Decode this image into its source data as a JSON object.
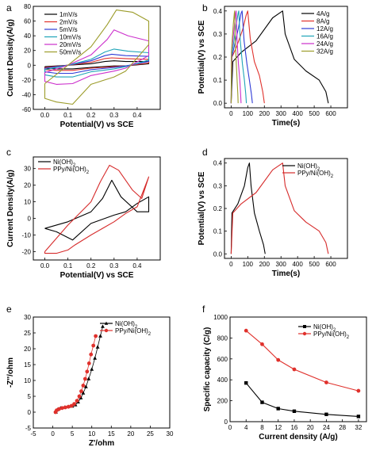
{
  "chart_data": [
    {
      "panel": "a",
      "type": "line",
      "xlabel": "Potential(V) vs SCE",
      "ylabel": "Current Density(A/g)",
      "xlim": [
        -0.05,
        0.5
      ],
      "ylim": [
        -60,
        80
      ],
      "xticks": [
        "0.0",
        "0.1",
        "0.2",
        "0.3",
        "0.4"
      ],
      "xtick_values": [
        0.0,
        0.1,
        0.2,
        0.3,
        0.4
      ],
      "yticks": [
        "-60",
        "-40",
        "-20",
        "0",
        "20",
        "40",
        "60",
        "80"
      ],
      "ytick_values": [
        -60,
        -40,
        -20,
        0,
        20,
        40,
        60,
        80
      ],
      "legend_position": "top-left",
      "series": [
        {
          "name": "1mV/s",
          "color": "#000000",
          "x": [
            0.0,
            0.1,
            0.2,
            0.26,
            0.3,
            0.35,
            0.45,
            0.45,
            0.35,
            0.3,
            0.2,
            0.12,
            0.05,
            0.0,
            0.0
          ],
          "y": [
            -2,
            0,
            2,
            5,
            6,
            5,
            5,
            2,
            -1,
            -1,
            -3,
            -5,
            -5,
            -4,
            -2
          ]
        },
        {
          "name": "2mV/s",
          "color": "#e0312c",
          "x": [
            0.0,
            0.1,
            0.2,
            0.26,
            0.29,
            0.35,
            0.45,
            0.45,
            0.35,
            0.3,
            0.2,
            0.12,
            0.05,
            0.0,
            0.0
          ],
          "y": [
            -3,
            0,
            4,
            9,
            10,
            9,
            8,
            3,
            -1,
            -2,
            -4,
            -7,
            -7,
            -6,
            -3
          ]
        },
        {
          "name": "5mV/s",
          "color": "#2f3bd6",
          "x": [
            0.0,
            0.1,
            0.2,
            0.26,
            0.29,
            0.35,
            0.45,
            0.45,
            0.35,
            0.3,
            0.2,
            0.12,
            0.05,
            0.0,
            0.0
          ],
          "y": [
            -4,
            0,
            6,
            13,
            15,
            13,
            12,
            5,
            -1,
            -3,
            -6,
            -11,
            -11,
            -9,
            -4
          ]
        },
        {
          "name": "10mV/s",
          "color": "#1ea4b8",
          "x": [
            0.0,
            0.1,
            0.2,
            0.26,
            0.3,
            0.36,
            0.45,
            0.45,
            0.35,
            0.3,
            0.2,
            0.12,
            0.05,
            0.0,
            0.0
          ],
          "y": [
            -6,
            0,
            8,
            18,
            22,
            19,
            17,
            7,
            -2,
            -5,
            -9,
            -16,
            -16,
            -13,
            -6
          ]
        },
        {
          "name": "20mV/s",
          "color": "#cc2fcc",
          "x": [
            0.0,
            0.1,
            0.2,
            0.27,
            0.3,
            0.36,
            0.45,
            0.45,
            0.35,
            0.3,
            0.2,
            0.12,
            0.05,
            0.0,
            0.0
          ],
          "y": [
            -10,
            0,
            14,
            35,
            48,
            40,
            33,
            13,
            -4,
            -8,
            -14,
            -25,
            -26,
            -22,
            -10
          ]
        },
        {
          "name": "50mV/s",
          "color": "#9c9c2a",
          "x": [
            0.0,
            0.1,
            0.2,
            0.27,
            0.31,
            0.38,
            0.45,
            0.45,
            0.35,
            0.3,
            0.2,
            0.12,
            0.05,
            0.0,
            0.0
          ],
          "y": [
            -25,
            0,
            25,
            55,
            75,
            72,
            60,
            28,
            -8,
            -16,
            -26,
            -53,
            -50,
            -45,
            -25
          ]
        }
      ]
    },
    {
      "panel": "b",
      "type": "line",
      "xlabel": "Time(s)",
      "ylabel": "Potential(V) vs SCE",
      "xlim": [
        -40,
        700
      ],
      "ylim": [
        -0.02,
        0.42
      ],
      "xticks": [
        "0",
        "100",
        "200",
        "300",
        "400",
        "500",
        "600"
      ],
      "xtick_values": [
        0,
        100,
        200,
        300,
        400,
        500,
        600
      ],
      "yticks": [
        "0.0",
        "0.1",
        "0.2",
        "0.3",
        "0.4"
      ],
      "ytick_values": [
        0.0,
        0.1,
        0.2,
        0.3,
        0.4
      ],
      "legend_position": "top-right",
      "series": [
        {
          "name": "4A/g",
          "color": "#000000",
          "x": [
            0,
            10,
            60,
            150,
            250,
            290,
            310,
            325,
            380,
            450,
            530,
            570,
            585
          ],
          "y": [
            0.0,
            0.18,
            0.22,
            0.27,
            0.37,
            0.39,
            0.4,
            0.3,
            0.19,
            0.14,
            0.1,
            0.05,
            0.0
          ]
        },
        {
          "name": "8A/g",
          "color": "#e0312c",
          "x": [
            0,
            5,
            30,
            70,
            90,
            100,
            115,
            140,
            170,
            190,
            200
          ],
          "y": [
            0.0,
            0.2,
            0.24,
            0.32,
            0.38,
            0.4,
            0.28,
            0.18,
            0.12,
            0.05,
            0.0
          ]
        },
        {
          "name": "12A/g",
          "color": "#2f3bd6",
          "x": [
            0,
            4,
            20,
            45,
            60,
            66,
            78,
            95,
            110,
            122,
            128
          ],
          "y": [
            0.0,
            0.2,
            0.25,
            0.33,
            0.39,
            0.4,
            0.27,
            0.17,
            0.1,
            0.04,
            0.0
          ]
        },
        {
          "name": "16A/g",
          "color": "#1ea4b8",
          "x": [
            0,
            3,
            15,
            30,
            42,
            46,
            55,
            68,
            80,
            88,
            92
          ],
          "y": [
            0.0,
            0.21,
            0.26,
            0.34,
            0.39,
            0.4,
            0.27,
            0.17,
            0.1,
            0.04,
            0.0
          ]
        },
        {
          "name": "24A/g",
          "color": "#cc2fcc",
          "x": [
            0,
            2,
            10,
            20,
            27,
            30,
            36,
            44,
            52,
            57,
            60
          ],
          "y": [
            0.0,
            0.22,
            0.27,
            0.34,
            0.39,
            0.4,
            0.27,
            0.17,
            0.1,
            0.04,
            0.0
          ]
        },
        {
          "name": "32A/g",
          "color": "#9c9c2a",
          "x": [
            0,
            2,
            7,
            14,
            19,
            21,
            25,
            31,
            36,
            40,
            42
          ],
          "y": [
            0.0,
            0.22,
            0.28,
            0.35,
            0.39,
            0.4,
            0.27,
            0.17,
            0.1,
            0.04,
            0.0
          ]
        }
      ]
    },
    {
      "panel": "c",
      "type": "line",
      "xlabel": "Potential(V) vs SCE",
      "ylabel": "Current Density(A/g)",
      "xlim": [
        -0.05,
        0.5
      ],
      "ylim": [
        -25,
        37
      ],
      "xticks": [
        "0.0",
        "0.1",
        "0.2",
        "0.3",
        "0.4"
      ],
      "xtick_values": [
        0.0,
        0.1,
        0.2,
        0.3,
        0.4
      ],
      "yticks": [
        "-20",
        "-10",
        "0",
        "10",
        "20",
        "30"
      ],
      "ytick_values": [
        -20,
        -10,
        0,
        10,
        20,
        30
      ],
      "legend_position": "top-left",
      "series": [
        {
          "name": "Ni(OH)2",
          "color": "#000000",
          "x": [
            0.0,
            0.1,
            0.2,
            0.25,
            0.29,
            0.33,
            0.4,
            0.45,
            0.45,
            0.4,
            0.35,
            0.3,
            0.2,
            0.12,
            0.05,
            0.0,
            0.0
          ],
          "y": [
            -6,
            -2,
            4,
            12,
            23,
            13,
            4,
            4,
            13,
            9,
            4,
            2,
            -3,
            -13,
            -8,
            -6,
            -6
          ]
        },
        {
          "name": "PPy/Ni(OH)2",
          "color": "#d62b2b",
          "x": [
            0.0,
            0.1,
            0.2,
            0.24,
            0.28,
            0.32,
            0.38,
            0.42,
            0.45,
            0.45,
            0.4,
            0.35,
            0.3,
            0.2,
            0.13,
            0.1,
            0.05,
            0.0,
            0.0
          ],
          "y": [
            -20,
            -4,
            10,
            22,
            32,
            29,
            17,
            12,
            25,
            25,
            7,
            3,
            -2,
            -10,
            -16,
            -19,
            -21,
            -21,
            -20
          ]
        }
      ]
    },
    {
      "panel": "d",
      "type": "line",
      "xlabel": "Time(s)",
      "ylabel": "Potential(V) vs SCE",
      "xlim": [
        -40,
        700
      ],
      "ylim": [
        -0.02,
        0.42
      ],
      "xticks": [
        "0",
        "100",
        "200",
        "300",
        "400",
        "500",
        "600"
      ],
      "xtick_values": [
        0,
        100,
        200,
        300,
        400,
        500,
        600
      ],
      "yticks": [
        "0.0",
        "0.1",
        "0.2",
        "0.3",
        "0.4"
      ],
      "ytick_values": [
        0.0,
        0.1,
        0.2,
        0.3,
        0.4
      ],
      "legend_position": "top-right",
      "series": [
        {
          "name": "Ni(OH)2",
          "color": "#000000",
          "x": [
            0,
            5,
            40,
            80,
            100,
            110,
            120,
            140,
            170,
            195,
            205
          ],
          "y": [
            0.0,
            0.18,
            0.22,
            0.3,
            0.38,
            0.4,
            0.3,
            0.18,
            0.1,
            0.04,
            0.0
          ]
        },
        {
          "name": "PPy/Ni(OH)2",
          "color": "#d62b2b",
          "x": [
            0,
            10,
            60,
            150,
            250,
            290,
            310,
            325,
            380,
            450,
            530,
            570,
            585
          ],
          "y": [
            0.0,
            0.18,
            0.22,
            0.27,
            0.37,
            0.39,
            0.4,
            0.3,
            0.19,
            0.14,
            0.1,
            0.05,
            0.0
          ]
        }
      ]
    },
    {
      "panel": "e",
      "type": "scatter",
      "xlabel": "Z'/ohm",
      "ylabel": "-Z''/ohm",
      "xlim": [
        -5,
        30
      ],
      "ylim": [
        -5,
        30
      ],
      "xticks": [
        "-5",
        "0",
        "5",
        "10",
        "15",
        "20",
        "25",
        "30"
      ],
      "xtick_values": [
        -5,
        0,
        5,
        10,
        15,
        20,
        25,
        30
      ],
      "yticks": [
        "-5",
        "0",
        "5",
        "10",
        "15",
        "20",
        "25",
        "30"
      ],
      "ytick_values": [
        -5,
        0,
        5,
        10,
        15,
        20,
        25,
        30
      ],
      "legend_position": "top-right",
      "series": [
        {
          "name": "Ni(OH)2",
          "color": "#000000",
          "marker": "triangle",
          "x": [
            0.8,
            1.2,
            2.0,
            3.0,
            4.0,
            5.0,
            5.8,
            6.5,
            7.2,
            7.8,
            8.5,
            9.2,
            10.0,
            10.8,
            11.5,
            12.2,
            12.8
          ],
          "y": [
            0.0,
            0.8,
            1.3,
            1.5,
            1.7,
            1.9,
            2.3,
            3.2,
            4.5,
            6.0,
            8.0,
            10.5,
            13.5,
            17.0,
            20.5,
            24.0,
            27.0
          ]
        },
        {
          "name": "PPy/Ni(OH)2",
          "color": "#e0312c",
          "marker": "circle",
          "x": [
            0.7,
            1.0,
            1.6,
            2.4,
            3.2,
            4.0,
            4.8,
            5.5,
            6.2,
            6.8,
            7.3,
            7.8,
            8.3,
            8.8,
            9.3,
            9.8,
            10.4,
            11.0
          ],
          "y": [
            0.0,
            0.6,
            1.0,
            1.3,
            1.5,
            1.7,
            2.0,
            2.6,
            3.6,
            5.0,
            6.6,
            8.4,
            10.5,
            12.8,
            15.4,
            18.2,
            21.0,
            24.0
          ]
        }
      ]
    },
    {
      "panel": "f",
      "type": "line",
      "xlabel": "Current density (A/g)",
      "ylabel": "Specific capacity (C/g)",
      "xlim": [
        0,
        34
      ],
      "ylim": [
        0,
        1000
      ],
      "xticks": [
        "0",
        "4",
        "8",
        "12",
        "16",
        "20",
        "24",
        "28",
        "32"
      ],
      "xtick_values": [
        0,
        4,
        8,
        12,
        16,
        20,
        24,
        28,
        32
      ],
      "yticks": [
        "0",
        "200",
        "400",
        "600",
        "800",
        "1000"
      ],
      "ytick_values": [
        0,
        200,
        400,
        600,
        800,
        1000
      ],
      "legend_position": "top-right",
      "series": [
        {
          "name": "Ni(OH)2",
          "color": "#000000",
          "marker": "square",
          "x": [
            4,
            8,
            12,
            16,
            24,
            32
          ],
          "y": [
            370,
            185,
            125,
            100,
            70,
            50
          ]
        },
        {
          "name": "PPy/Ni(OH)2",
          "color": "#e0312c",
          "marker": "circle",
          "x": [
            4,
            8,
            12,
            16,
            24,
            32
          ],
          "y": [
            870,
            740,
            590,
            500,
            375,
            295
          ]
        }
      ]
    }
  ],
  "panel_labels": [
    "a",
    "b",
    "c",
    "d",
    "e",
    "f"
  ]
}
